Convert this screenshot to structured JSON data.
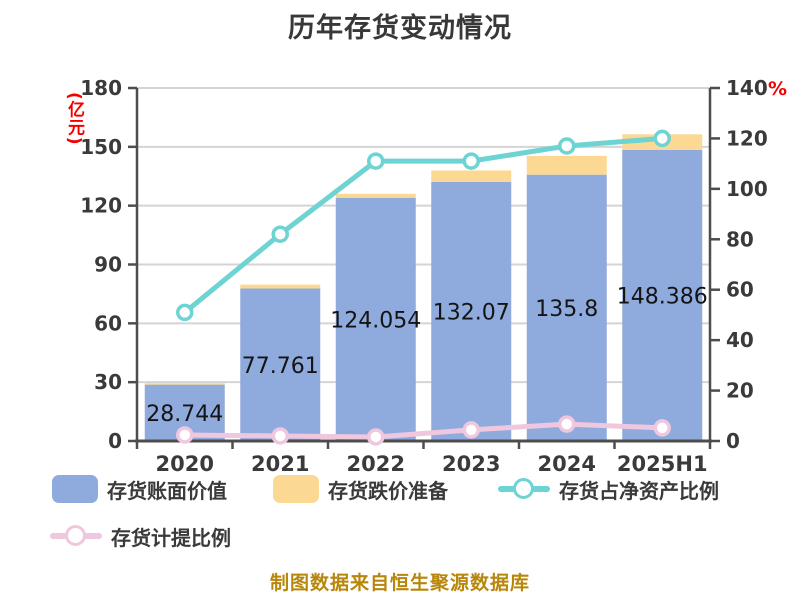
{
  "title": "历年存货变动情况",
  "source_note": "制图数据来自恒生聚源数据库",
  "axes": {
    "left_unit": "(亿元)",
    "right_unit": "%",
    "left_ticks": [
      0,
      30,
      60,
      90,
      120,
      150,
      180
    ],
    "right_ticks": [
      0,
      20,
      40,
      60,
      80,
      100,
      120,
      140
    ],
    "left_max": 180,
    "right_max": 140
  },
  "legend": {
    "items": [
      {
        "key": "book-value",
        "label": "存货账面价值",
        "type": "bar",
        "color": "#8FAADC"
      },
      {
        "key": "provision",
        "label": "存货跌价准备",
        "type": "bar",
        "color": "#FBD992"
      },
      {
        "key": "net-asset-ratio",
        "label": "存货占净资产比例",
        "type": "line",
        "color": "#6ED3D3"
      },
      {
        "key": "provision-ratio",
        "label": "存货计提比例",
        "type": "line",
        "color": "#EFC7DF"
      }
    ]
  },
  "colors": {
    "bar_blue": "#8FAADC",
    "bar_orange": "#FBD992",
    "line_cyan": "#6ED3D3",
    "line_pink": "#EFC7DF",
    "marker_fill": "#FFFFFF",
    "axis_line": "#4D4D4D",
    "grid_line": "#D4D4D4",
    "tick_text": "#3A3A3A",
    "bar_label_text": "#141414",
    "accent_red": "#F40000",
    "source_text": "#B8860B",
    "title_text": "#383838"
  },
  "chart_data": {
    "type": "bar",
    "subtype": "stacked-bars-with-lines",
    "title": "历年存货变动情况",
    "categories": [
      "2020",
      "2021",
      "2022",
      "2023",
      "2024",
      "2025H1"
    ],
    "series": [
      {
        "key": "book-value",
        "name": "存货账面价值",
        "type": "bar",
        "axis": "left",
        "color": "#8FAADC",
        "values": [
          28.744,
          77.761,
          124.054,
          132.07,
          135.8,
          148.386
        ],
        "labels": [
          "28.744",
          "77.761",
          "124.054",
          "132.07",
          "135.8",
          "148.386"
        ]
      },
      {
        "key": "provision",
        "name": "存货跌价准备",
        "type": "bar-stacked-on-top",
        "axis": "left",
        "color": "#FBD992",
        "values": [
          0.7,
          2.0,
          2.0,
          5.9,
          9.6,
          8.0
        ]
      },
      {
        "key": "net-asset-ratio",
        "name": "存货占净资产比例",
        "type": "line",
        "axis": "right",
        "color": "#6ED3D3",
        "values": [
          51,
          82,
          111,
          111,
          117,
          120
        ]
      },
      {
        "key": "provision-ratio",
        "name": "存货计提比例",
        "type": "line",
        "axis": "right",
        "color": "#EFC7DF",
        "values": [
          2.4,
          2.0,
          1.6,
          4.4,
          6.7,
          5.2
        ]
      }
    ],
    "ylabel_left": "(亿元)",
    "ylabel_right": "%",
    "ylim_left": [
      0,
      180
    ],
    "ylim_right": [
      0,
      140
    ],
    "grid": true,
    "legend_position": "bottom"
  }
}
